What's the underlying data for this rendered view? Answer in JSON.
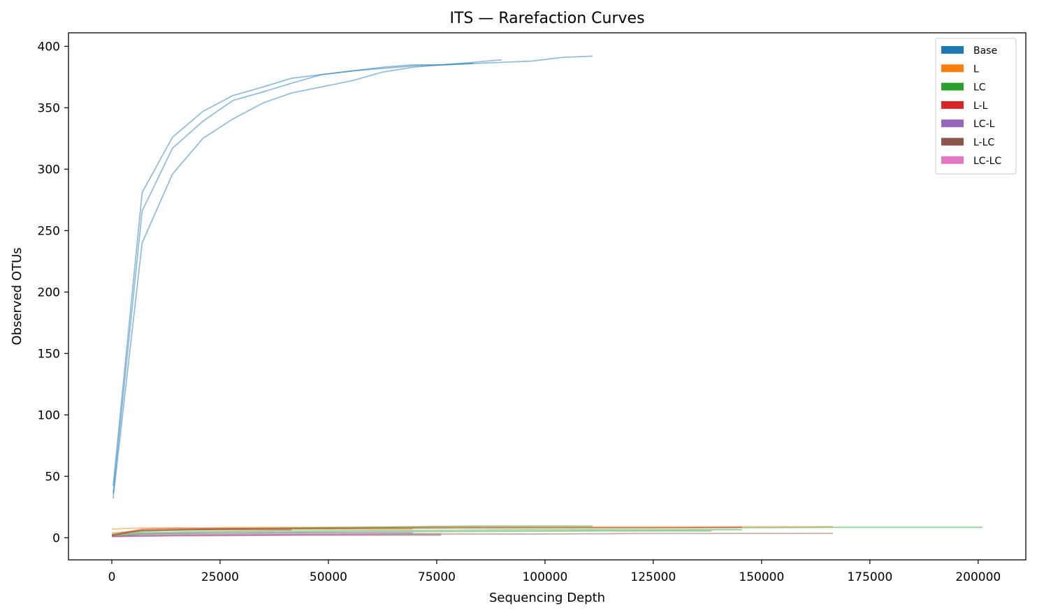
{
  "chart_data": {
    "type": "line",
    "title": "ITS — Rarefaction Curves",
    "xlabel": "Sequencing Depth",
    "ylabel": "Observed OTUs",
    "xlim": [
      -10000,
      211000
    ],
    "ylim": [
      -18,
      411
    ],
    "xticks": [
      0,
      25000,
      50000,
      75000,
      100000,
      125000,
      150000,
      175000,
      200000
    ],
    "yticks": [
      0,
      50,
      100,
      150,
      200,
      250,
      300,
      350,
      400
    ],
    "grid": false,
    "legend_position": "top-right",
    "legend": [
      {
        "name": "Base",
        "color": "#1f77b4"
      },
      {
        "name": "L",
        "color": "#ff7f0e"
      },
      {
        "name": "LC",
        "color": "#2ca02c"
      },
      {
        "name": "L-L",
        "color": "#d62728"
      },
      {
        "name": "LC-L",
        "color": "#9467bd"
      },
      {
        "name": "L-LC",
        "color": "#8c564b"
      },
      {
        "name": "LC-LC",
        "color": "#e377c2"
      }
    ],
    "series": [
      {
        "group": "Base",
        "color": "#1f77b4",
        "points": [
          [
            300,
            42
          ],
          [
            7000,
            281
          ],
          [
            14000,
            326
          ],
          [
            21000,
            347
          ],
          [
            28000,
            360
          ],
          [
            35000,
            367
          ],
          [
            41500,
            374
          ],
          [
            48500,
            377
          ],
          [
            55500,
            380
          ],
          [
            62500,
            383
          ],
          [
            69500,
            385
          ],
          [
            76500,
            385
          ],
          [
            83500,
            387
          ],
          [
            90000,
            389
          ]
        ]
      },
      {
        "group": "Base",
        "color": "#1f77b4",
        "points": [
          [
            300,
            36
          ],
          [
            7000,
            266
          ],
          [
            14000,
            317
          ],
          [
            21000,
            339
          ],
          [
            28000,
            356
          ],
          [
            35000,
            363
          ],
          [
            41500,
            370
          ],
          [
            48500,
            377
          ],
          [
            55500,
            380
          ],
          [
            62500,
            382
          ],
          [
            69500,
            384
          ],
          [
            76500,
            385
          ],
          [
            83500,
            386
          ]
        ]
      },
      {
        "group": "Base",
        "color": "#1f77b4",
        "points": [
          [
            300,
            32
          ],
          [
            7000,
            240
          ],
          [
            14000,
            296
          ],
          [
            21000,
            325
          ],
          [
            28000,
            341
          ],
          [
            35000,
            354
          ],
          [
            41500,
            362
          ],
          [
            48500,
            367
          ],
          [
            55500,
            372
          ],
          [
            62500,
            379
          ],
          [
            69500,
            383
          ],
          [
            76500,
            385
          ],
          [
            83500,
            386
          ],
          [
            90500,
            387
          ],
          [
            97000,
            388
          ],
          [
            104000,
            391
          ],
          [
            111000,
            392
          ]
        ]
      },
      {
        "group": "L",
        "color": "#ff7f0e",
        "points": [
          [
            0,
            7
          ],
          [
            7000,
            8
          ],
          [
            14000,
            8
          ],
          [
            21000,
            8
          ],
          [
            28000,
            8.5
          ],
          [
            41500,
            8.5
          ],
          [
            62500,
            8.5
          ],
          [
            83500,
            9
          ],
          [
            111000,
            9
          ],
          [
            138500,
            9
          ],
          [
            166500,
            9
          ]
        ]
      },
      {
        "group": "L",
        "color": "#ff7f0e",
        "points": [
          [
            0,
            4
          ],
          [
            7000,
            6
          ],
          [
            14000,
            6.5
          ],
          [
            21000,
            7
          ],
          [
            41500,
            7
          ],
          [
            69500,
            7
          ]
        ]
      },
      {
        "group": "LC",
        "color": "#2ca02c",
        "points": [
          [
            0,
            3
          ],
          [
            7000,
            6
          ],
          [
            14000,
            6.5
          ],
          [
            21000,
            7
          ],
          [
            28000,
            7.5
          ],
          [
            41500,
            8
          ],
          [
            55500,
            8.5
          ],
          [
            69500,
            9
          ],
          [
            83500,
            9.5
          ],
          [
            111000,
            9.5
          ]
        ]
      },
      {
        "group": "LC",
        "color": "#2ca02c",
        "points": [
          [
            0,
            2
          ],
          [
            7000,
            5
          ],
          [
            14000,
            6
          ],
          [
            28000,
            7
          ],
          [
            55500,
            7.5
          ],
          [
            83500,
            8
          ],
          [
            111000,
            8
          ],
          [
            138500,
            8
          ],
          [
            166500,
            8.5
          ],
          [
            201000,
            8.5
          ]
        ]
      },
      {
        "group": "LC",
        "color": "#2ca02c",
        "points": [
          [
            0,
            2
          ],
          [
            7000,
            4
          ],
          [
            21000,
            5
          ],
          [
            41500,
            5.5
          ],
          [
            69500,
            6
          ],
          [
            97000,
            6.5
          ],
          [
            125000,
            6.5
          ],
          [
            145500,
            6.5
          ]
        ]
      },
      {
        "group": "LC",
        "color": "#2ca02c",
        "points": [
          [
            0,
            1
          ],
          [
            7000,
            3
          ],
          [
            21000,
            4
          ],
          [
            48500,
            4.5
          ],
          [
            83500,
            5
          ],
          [
            111000,
            5.5
          ],
          [
            138500,
            5.5
          ]
        ]
      },
      {
        "group": "L-L",
        "color": "#d62728",
        "points": [
          [
            0,
            2
          ],
          [
            7000,
            7
          ],
          [
            14000,
            7.5
          ],
          [
            21000,
            7.5
          ],
          [
            41500,
            7.5
          ],
          [
            69500,
            8
          ],
          [
            97000,
            8
          ],
          [
            125000,
            8
          ],
          [
            145500,
            8.5
          ]
        ]
      },
      {
        "group": "L-L",
        "color": "#d62728",
        "points": [
          [
            0,
            2
          ],
          [
            7000,
            6
          ],
          [
            21000,
            6.5
          ],
          [
            41500,
            6.5
          ]
        ]
      },
      {
        "group": "LC-L",
        "color": "#9467bd",
        "points": [
          [
            0,
            1
          ],
          [
            7000,
            2
          ],
          [
            21000,
            2.5
          ],
          [
            41500,
            3
          ],
          [
            55500,
            3
          ],
          [
            69500,
            3
          ],
          [
            76000,
            3
          ]
        ]
      },
      {
        "group": "LC-L",
        "color": "#9467bd",
        "points": [
          [
            0,
            1
          ],
          [
            7000,
            3
          ],
          [
            21000,
            3.5
          ],
          [
            41500,
            4
          ],
          [
            69500,
            4
          ]
        ]
      },
      {
        "group": "L-LC",
        "color": "#8c564b",
        "points": [
          [
            0,
            1
          ],
          [
            14000,
            2
          ],
          [
            41500,
            2.5
          ],
          [
            69500,
            3
          ],
          [
            97000,
            3
          ],
          [
            125000,
            3.5
          ],
          [
            166500,
            3.5
          ]
        ]
      },
      {
        "group": "L-LC",
        "color": "#8c564b",
        "points": [
          [
            0,
            1
          ],
          [
            14000,
            1.5
          ],
          [
            41500,
            2
          ],
          [
            62500,
            2
          ],
          [
            76000,
            2
          ]
        ]
      },
      {
        "group": "LC-LC",
        "color": "#e377c2",
        "points": [
          [
            0,
            1
          ],
          [
            14000,
            1.5
          ],
          [
            41500,
            2
          ],
          [
            62500,
            2.5
          ]
        ]
      }
    ]
  }
}
